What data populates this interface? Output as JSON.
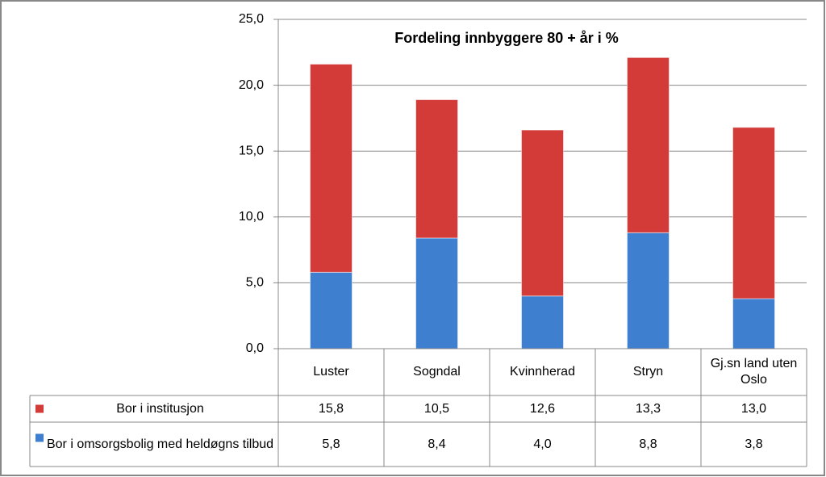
{
  "chart_data": {
    "type": "bar",
    "stacked": true,
    "title": "Fordeling innbyggere 80 + år  i %",
    "categories": [
      "Luster",
      "Sogndal",
      "Kvinnherad",
      "Stryn",
      "Gj.sn land uten Oslo"
    ],
    "series": [
      {
        "name": "Bor i institusjon",
        "color": "#d23b38",
        "values": [
          15.8,
          10.5,
          12.6,
          13.3,
          13.0
        ],
        "value_labels": [
          "15,8",
          "10,5",
          "12,6",
          "13,3",
          "13,0"
        ]
      },
      {
        "name": "Bor i omsorgsbolig med heldøgns tilbud",
        "color": "#3f7fd0",
        "values": [
          5.8,
          8.4,
          4.0,
          8.8,
          3.8
        ],
        "value_labels": [
          "5,8",
          "8,4",
          "4,0",
          "8,8",
          "3,8"
        ]
      }
    ],
    "ylim": [
      0,
      25
    ],
    "yticks": [
      {
        "value": 0,
        "label": "0,0"
      },
      {
        "value": 5,
        "label": "5,0"
      },
      {
        "value": 10,
        "label": "10,0"
      },
      {
        "value": 15,
        "label": "15,0"
      },
      {
        "value": 20,
        "label": "20,0"
      },
      {
        "value": 25,
        "label": "25,0"
      }
    ],
    "grid": true
  }
}
